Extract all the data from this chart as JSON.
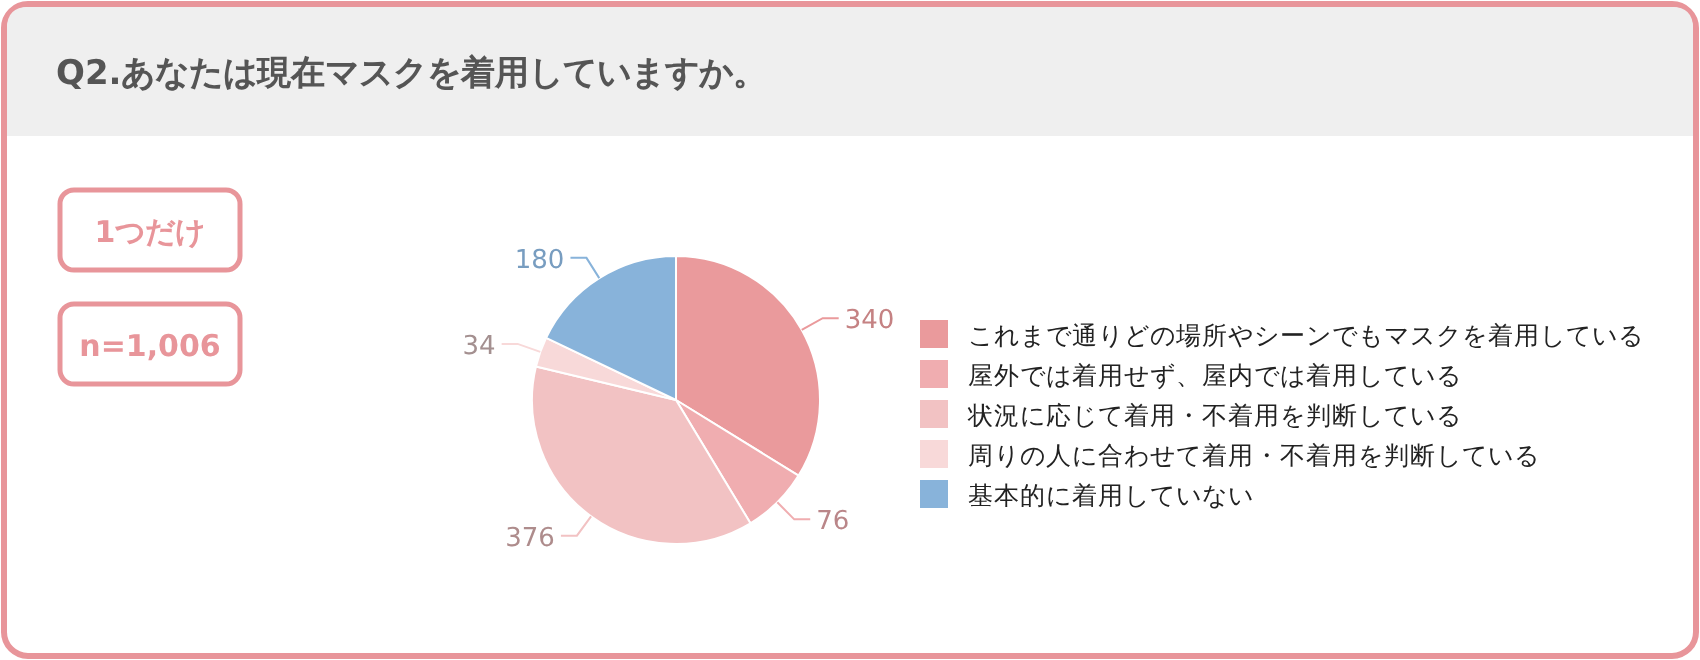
{
  "chart_data": {
    "type": "pie",
    "title": "Q2.あなたは現在マスクを着用していますか。",
    "annotations": [
      "1つだけ",
      "n=1,006"
    ],
    "categories": [
      "これまで通りどの場所やシーンでもマスクを着用している",
      "屋外では着用せず、屋内では着用している",
      "状況に応じて着用・不着用を判断している",
      "周りの人に合わせて着用・不着用を判断している",
      "基本的に着用していない"
    ],
    "values": [
      340,
      76,
      376,
      34,
      180
    ],
    "colors": [
      "#ea9a9c",
      "#f0adb0",
      "#f2c2c3",
      "#f8d9d9",
      "#88b3da"
    ],
    "data_labels": true,
    "legend": "right"
  }
}
